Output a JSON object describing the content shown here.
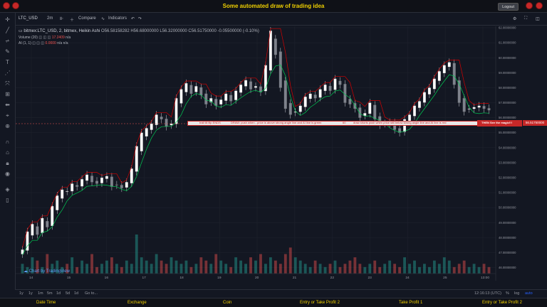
{
  "app": {
    "title": "Some automated draw of trading idea",
    "logout_label": "Logout"
  },
  "toolbar": {
    "symbol": "LTC_USD",
    "interval": "2m",
    "compare_label": "Compare",
    "indicators_label": "Indicators"
  },
  "legend": {
    "symbol_line": "bitmex:LTC_USD, 2, bitmex, Heikin Ashi",
    "open": "O56.58158282",
    "high": "H56.68000000",
    "low": "L56.32000000",
    "close": "C56.51750000",
    "change": "-0.05500000 (-0.10%)",
    "volume_label": "Volume (20)",
    "volume_value": "17.2409",
    "volume_na": "n/a",
    "ai_label": "AI (1, 1)",
    "ai_value": "0.0000",
    "ai_na1": "n/a",
    "ai_na2": "n/a"
  },
  "annotations": {
    "t1": "trail till flip ENDS",
    "t2": "DRAW: push when - price is above strong angle line and AI line is green",
    "t3": "60",
    "t4": "draw shorts push when price still below strong angle line and AI line is red",
    "t5": "THEN See the magic!!!"
  },
  "price_tag": "56.51750000",
  "watermark": "Chart by TradingView",
  "timeframes": [
    "1y",
    "1y",
    "1m",
    "5m",
    "1d",
    "5d",
    "1d",
    "Go to..."
  ],
  "status": {
    "time": "12:16:13 (UTC)",
    "percent": "%",
    "log": "log",
    "auto": "auto"
  },
  "bottom_bar": [
    "Date Time",
    "Exchange",
    "Coin",
    "Entry or Take Profit 2",
    "Take Profit 1",
    "Entry or Take Profit 2"
  ],
  "chart_data": {
    "type": "candlestick",
    "chart_style": "Heikin Ashi",
    "x_ticks": [
      "14",
      "15",
      "16",
      "17",
      "18",
      "19",
      "20",
      "21",
      "22",
      "23",
      "24",
      "25",
      "13:00"
    ],
    "y_ticks": [
      "62.00000000",
      "61.00000000",
      "60.00000000",
      "59.00000000",
      "58.00000000",
      "57.00000000",
      "56.00000000",
      "55.00000000",
      "54.00000000",
      "53.00000000",
      "52.00000000",
      "51.00000000",
      "50.00000000",
      "49.00000000",
      "48.00000000",
      "47.00000000",
      "46.00000000"
    ],
    "ylim": [
      45.6,
      62.1
    ],
    "close_series": [
      47.2,
      48.4,
      48.9,
      48.2,
      49.3,
      48.7,
      50.1,
      50.8,
      51.2,
      51.1,
      51.6,
      51.4,
      51.9,
      52.2,
      51.7,
      51.6,
      52.0,
      52.1,
      51.4,
      51.5,
      51.3,
      51.7,
      52.6,
      54.1,
      55.0,
      55.3,
      55.6,
      56.2,
      55.9,
      55.4,
      55.6,
      57.3,
      57.9,
      58.3,
      57.6,
      58.1,
      57.5,
      56.9,
      57.3,
      56.8,
      57.2,
      57.6,
      57.1,
      57.8,
      58.2,
      58.5,
      57.9,
      58.1,
      57.7,
      59.5,
      61.8,
      60.2,
      58.0,
      56.6,
      56.2,
      56.4,
      56.8,
      57.4,
      57.6,
      57.3,
      57.9,
      58.2,
      57.8,
      58.6,
      58.2,
      57.0,
      56.9,
      56.6,
      56.0,
      56.3,
      57.0,
      55.9,
      55.5,
      55.6,
      55.7,
      55.2,
      55.0,
      55.9,
      56.2,
      56.8,
      57.1,
      57.7,
      58.0,
      58.6,
      59.1,
      59.5,
      59.7,
      58.2,
      57.0,
      56.4,
      56.6,
      56.7,
      56.8,
      56.6,
      56.5
    ],
    "volume_series": [
      3,
      2,
      5,
      4,
      2,
      6,
      3,
      4,
      2,
      3,
      5,
      2,
      4,
      3,
      6,
      2,
      3,
      4,
      5,
      3,
      2,
      4,
      3,
      12,
      5,
      4,
      3,
      6,
      4,
      3,
      5,
      4,
      3,
      4,
      2,
      3,
      5,
      4,
      3,
      6,
      4,
      3,
      2,
      5,
      4,
      3,
      5,
      4,
      6,
      3,
      5,
      4,
      3,
      6,
      8,
      5,
      4,
      3,
      2,
      4,
      3,
      2,
      3,
      4,
      2,
      3,
      4,
      5,
      3,
      2,
      3,
      4,
      2,
      3,
      4,
      3,
      2,
      5,
      3,
      4,
      2,
      3,
      2,
      4,
      3,
      5,
      4,
      2,
      3,
      4,
      2,
      3,
      2,
      3,
      2
    ],
    "lines": [
      {
        "name": "Strong angle line",
        "color": "#00c853"
      },
      {
        "name": "AI line",
        "color": "#d50000"
      }
    ]
  }
}
